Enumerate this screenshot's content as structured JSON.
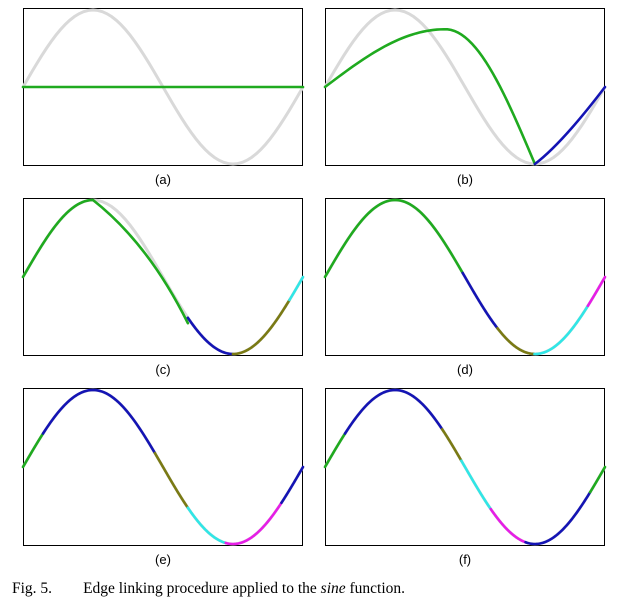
{
  "figure": {
    "caption": {
      "fig_label": "Fig. 5.",
      "text_before": "Edge linking procedure applied to the ",
      "emphasis": "sine",
      "text_after": " function."
    }
  },
  "colors": {
    "reference_sine": "#d9d9d9",
    "green": "#1faa1f",
    "blue": "#1414b4",
    "olive": "#7a7a14",
    "cyan": "#30e6e6",
    "magenta": "#e61ee6"
  },
  "chart_data": [
    {
      "type": "line",
      "label": "(a)",
      "reference": "sin(x), x in [0, 2π]",
      "segments": [
        {
          "kind": "line",
          "from": [
            0,
            0
          ],
          "to": [
            6.2832,
            0
          ],
          "color": "green"
        }
      ]
    },
    {
      "type": "line",
      "label": "(b)",
      "reference": "sin(x), x in [0, 2π]",
      "segments": [
        {
          "kind": "arc",
          "from": [
            0,
            0
          ],
          "peak": [
            2.7,
            0.75
          ],
          "to": [
            4.71,
            -1
          ],
          "color": "green"
        },
        {
          "kind": "arc",
          "from": [
            4.71,
            -1
          ],
          "to": [
            6.2832,
            0
          ],
          "color": "blue"
        }
      ]
    },
    {
      "type": "line",
      "label": "(c)",
      "reference": "sin(x), x in [0, 2π]",
      "segments": [
        {
          "kind": "sine",
          "x0": 0,
          "x1": 1.57,
          "color": "green"
        },
        {
          "kind": "arc",
          "from": [
            1.57,
            1
          ],
          "to": [
            3.7,
            -0.6
          ],
          "color": "green"
        },
        {
          "kind": "sine",
          "x0": 3.7,
          "x1": 4.71,
          "color": "blue"
        },
        {
          "kind": "sine",
          "x0": 4.71,
          "x1": 5.98,
          "color": "olive"
        },
        {
          "kind": "sine",
          "x0": 5.98,
          "x1": 6.2832,
          "color": "cyan"
        }
      ]
    },
    {
      "type": "line",
      "label": "(d)",
      "reference": "sin(x), x in [0, 2π]",
      "segments": [
        {
          "kind": "sine",
          "x0": 0,
          "x1": 3.09,
          "color": "green"
        },
        {
          "kind": "sine",
          "x0": 3.09,
          "x1": 3.87,
          "color": "blue"
        },
        {
          "kind": "sine",
          "x0": 3.87,
          "x1": 4.7,
          "color": "olive"
        },
        {
          "kind": "sine",
          "x0": 4.7,
          "x1": 5.9,
          "color": "cyan"
        },
        {
          "kind": "sine",
          "x0": 5.9,
          "x1": 6.2832,
          "color": "magenta"
        }
      ]
    },
    {
      "type": "line",
      "label": "(e)",
      "reference": "sin(x), x in [0, 2π]",
      "segments": [
        {
          "kind": "sine",
          "x0": 0,
          "x1": 0.45,
          "color": "green"
        },
        {
          "kind": "sine",
          "x0": 0.45,
          "x1": 2.96,
          "color": "blue"
        },
        {
          "kind": "sine",
          "x0": 2.96,
          "x1": 3.7,
          "color": "olive"
        },
        {
          "kind": "sine",
          "x0": 3.7,
          "x1": 4.55,
          "color": "cyan"
        },
        {
          "kind": "sine",
          "x0": 4.55,
          "x1": 5.8,
          "color": "magenta"
        },
        {
          "kind": "sine",
          "x0": 5.8,
          "x1": 6.2832,
          "color": "blue"
        }
      ]
    },
    {
      "type": "line",
      "label": "(f)",
      "reference": "sin(x), x in [0, 2π]",
      "segments": [
        {
          "kind": "sine",
          "x0": 0,
          "x1": 0.45,
          "color": "green"
        },
        {
          "kind": "sine",
          "x0": 0.45,
          "x1": 2.63,
          "color": "blue"
        },
        {
          "kind": "sine",
          "x0": 2.63,
          "x1": 3.06,
          "color": "olive"
        },
        {
          "kind": "sine",
          "x0": 3.06,
          "x1": 3.72,
          "color": "cyan"
        },
        {
          "kind": "sine",
          "x0": 3.72,
          "x1": 4.5,
          "color": "magenta"
        },
        {
          "kind": "sine",
          "x0": 4.5,
          "x1": 5.95,
          "color": "blue"
        },
        {
          "kind": "sine",
          "x0": 5.95,
          "x1": 6.2832,
          "color": "green"
        }
      ]
    }
  ]
}
